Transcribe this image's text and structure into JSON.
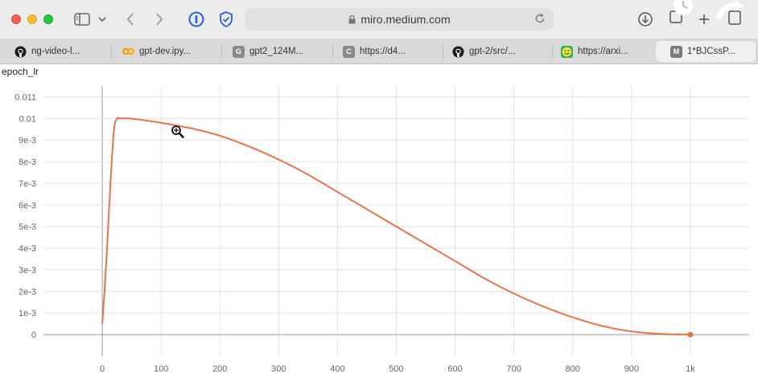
{
  "browser": {
    "address": "miro.medium.com",
    "tabs": [
      {
        "label": "ng-video-l...",
        "icon": "github-icon"
      },
      {
        "label": "gpt-dev.ipy...",
        "icon": "colab-icon"
      },
      {
        "label": "gpt2_124M...",
        "icon": "letter-g-icon"
      },
      {
        "label": "https://d4...",
        "icon": "letter-c-icon"
      },
      {
        "label": "gpt-2/src/...",
        "icon": "github-icon"
      },
      {
        "label": "https://arxi...",
        "icon": "smiley-icon"
      },
      {
        "label": "1*BJCssP...",
        "icon": "letter-m-icon"
      }
    ]
  },
  "chart_data": {
    "type": "line",
    "title": "epoch_lr",
    "xlabel": "",
    "ylabel": "",
    "x_ticks": [
      0,
      100,
      200,
      300,
      400,
      500,
      600,
      700,
      800,
      900,
      1000
    ],
    "x_tick_labels": [
      "0",
      "100",
      "200",
      "300",
      "400",
      "500",
      "600",
      "700",
      "800",
      "900",
      "1k"
    ],
    "y_ticks": [
      0,
      0.001,
      0.002,
      0.003,
      0.004,
      0.005,
      0.006,
      0.007,
      0.008,
      0.009,
      0.01,
      0.011
    ],
    "y_tick_labels": [
      "0",
      "1e-3",
      "2e-3",
      "3e-3",
      "4e-3",
      "5e-3",
      "6e-3",
      "7e-3",
      "8e-3",
      "9e-3",
      "0.01",
      "0.011"
    ],
    "xlim": [
      -100,
      1100
    ],
    "ylim": [
      -0.001,
      0.0115
    ],
    "grid": true,
    "series": [
      {
        "color": "#e8734a",
        "x": [
          0,
          5,
          10,
          15,
          20,
          25,
          30,
          50,
          100,
          150,
          200,
          250,
          300,
          350,
          400,
          450,
          500,
          550,
          600,
          650,
          700,
          750,
          800,
          850,
          900,
          950,
          1000
        ],
        "y": [
          0.0005,
          0.0025,
          0.005,
          0.0075,
          0.0095,
          0.01,
          0.01,
          0.00999,
          0.0098,
          0.00955,
          0.0092,
          0.0087,
          0.0081,
          0.0074,
          0.0066,
          0.0058,
          0.005,
          0.0042,
          0.0034,
          0.0026,
          0.0019,
          0.0013,
          0.0008,
          0.0004,
          0.00015,
          3e-05,
          0
        ]
      }
    ]
  }
}
